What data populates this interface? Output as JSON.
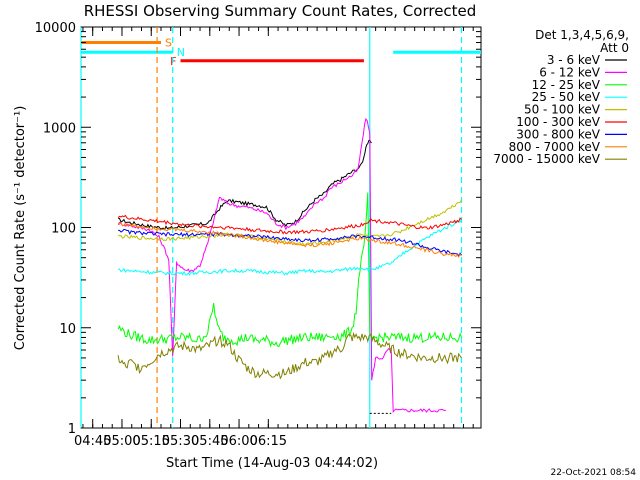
{
  "chart_data": {
    "type": "line",
    "title": "RHESSI Observing Summary Count Rates, Corrected",
    "xlabel": "Start Time (14-Aug-03 04:44:02)",
    "ylabel": "Corrected Count Rate (s⁻¹ detector⁻¹)",
    "yscale": "log",
    "ylim": [
      1,
      10000
    ],
    "xlim_minutes_after_start": [
      -5,
      200
    ],
    "x_ticks": [
      "04:45",
      "05:00",
      "05:15",
      "05:30",
      "05:45",
      "06:00",
      "06:15"
    ],
    "x_tick_minutes": [
      1,
      16,
      31,
      46,
      61,
      76,
      91
    ],
    "y_ticks": [
      "1",
      "10",
      "100",
      "1000",
      "10000"
    ],
    "y_tick_values": [
      1,
      10,
      100,
      1000,
      10000
    ],
    "legend_header": [
      "Det 1,3,4,5,6,9,",
      "Att 0"
    ],
    "legend_position": "right",
    "timestamp": "22-Oct-2021 08:54",
    "flags": [
      {
        "label": "S",
        "color": "#ff8000",
        "value": 7000,
        "x_start": -5,
        "x_end": 36
      },
      {
        "label": "N",
        "color": "#00ffff",
        "value": 5600,
        "x_start": -5,
        "x_end": 42
      },
      {
        "label": "N",
        "color": "#00ffff",
        "value": 5600,
        "x_start": 155,
        "x_end": 200
      },
      {
        "label": "F",
        "color": "#ff0000",
        "value": 4600,
        "x_start": 46,
        "x_end": 140
      }
    ],
    "flag_text": {
      "S": "S",
      "N": "N",
      "F": "F"
    },
    "vlines": [
      {
        "x": -5,
        "color": "#00ffff",
        "style": "solid"
      },
      {
        "x": 34,
        "color": "#ff8000",
        "style": "dashed"
      },
      {
        "x": 42,
        "color": "#00ffff",
        "style": "dashed"
      },
      {
        "x": 143,
        "color": "#00ffff",
        "style": "solid"
      },
      {
        "x": 190,
        "color": "#00ffff",
        "style": "dashed"
      }
    ],
    "series": [
      {
        "name": "3 - 6 keV",
        "color": "#000000",
        "points": [
          [
            14,
            120
          ],
          [
            20,
            112
          ],
          [
            30,
            103
          ],
          [
            40,
            98
          ],
          [
            50,
            104
          ],
          [
            60,
            110
          ],
          [
            66,
            155
          ],
          [
            70,
            185
          ],
          [
            75,
            180
          ],
          [
            80,
            172
          ],
          [
            85,
            168
          ],
          [
            90,
            160
          ],
          [
            95,
            120
          ],
          [
            100,
            105
          ],
          [
            105,
            115
          ],
          [
            110,
            150
          ],
          [
            115,
            190
          ],
          [
            120,
            220
          ],
          [
            122,
            250
          ],
          [
            125,
            280
          ],
          [
            128,
            300
          ],
          [
            132,
            340
          ],
          [
            135,
            370
          ],
          [
            138,
            400
          ],
          [
            140,
            500
          ],
          [
            141,
            650
          ],
          [
            142,
            700
          ],
          [
            143,
            720
          ],
          [
            144,
            700
          ]
        ]
      },
      {
        "name": "6 - 12 keV",
        "color": "#ff00ff",
        "points": [
          [
            14,
            110
          ],
          [
            20,
            105
          ],
          [
            30,
            95
          ],
          [
            35,
            80
          ],
          [
            38,
            60
          ],
          [
            40,
            48
          ],
          [
            42,
            5
          ],
          [
            44,
            45
          ],
          [
            48,
            38
          ],
          [
            52,
            37
          ],
          [
            56,
            42
          ],
          [
            60,
            70
          ],
          [
            64,
            140
          ],
          [
            66,
            200
          ],
          [
            70,
            175
          ],
          [
            75,
            165
          ],
          [
            80,
            160
          ],
          [
            85,
            150
          ],
          [
            90,
            140
          ],
          [
            95,
            110
          ],
          [
            100,
            100
          ],
          [
            105,
            110
          ],
          [
            110,
            130
          ],
          [
            115,
            175
          ],
          [
            120,
            200
          ],
          [
            122,
            240
          ],
          [
            125,
            260
          ],
          [
            128,
            280
          ],
          [
            131,
            310
          ],
          [
            134,
            330
          ],
          [
            137,
            380
          ],
          [
            139,
            700
          ],
          [
            141,
            1250
          ],
          [
            143,
            900
          ],
          [
            144,
            3
          ],
          [
            146,
            5
          ],
          [
            150,
            5
          ],
          [
            152,
            6
          ],
          [
            154,
            6
          ],
          [
            155,
            1.5
          ],
          [
            182,
            1.5
          ]
        ]
      },
      {
        "name": "12 - 25 keV",
        "color": "#00ff00",
        "points": [
          [
            14,
            10
          ],
          [
            20,
            8.5
          ],
          [
            25,
            8
          ],
          [
            30,
            7.5
          ],
          [
            40,
            7.8
          ],
          [
            45,
            8
          ],
          [
            50,
            8
          ],
          [
            55,
            7.5
          ],
          [
            60,
            9
          ],
          [
            63,
            17
          ],
          [
            65,
            10
          ],
          [
            68,
            8
          ],
          [
            75,
            7.5
          ],
          [
            80,
            8
          ],
          [
            85,
            7.5
          ],
          [
            90,
            7.5
          ],
          [
            95,
            7
          ],
          [
            100,
            7.5
          ],
          [
            110,
            8
          ],
          [
            120,
            8
          ],
          [
            125,
            8.5
          ],
          [
            128,
            8
          ],
          [
            132,
            9
          ],
          [
            134,
            10
          ],
          [
            136,
            15
          ],
          [
            138,
            40
          ],
          [
            140,
            60
          ],
          [
            142,
            200
          ],
          [
            143,
            8
          ],
          [
            150,
            8
          ],
          [
            160,
            8
          ],
          [
            170,
            8
          ],
          [
            180,
            8
          ],
          [
            190,
            8
          ]
        ]
      },
      {
        "name": "25 - 50 keV",
        "color": "#00ffff",
        "points": [
          [
            14,
            38
          ],
          [
            20,
            37
          ],
          [
            30,
            36
          ],
          [
            40,
            35
          ],
          [
            50,
            35
          ],
          [
            60,
            36
          ],
          [
            70,
            37
          ],
          [
            80,
            37
          ],
          [
            90,
            36
          ],
          [
            100,
            35
          ],
          [
            110,
            37
          ],
          [
            120,
            36
          ],
          [
            130,
            38
          ],
          [
            138,
            40
          ],
          [
            143,
            38
          ],
          [
            148,
            40
          ],
          [
            155,
            45
          ],
          [
            160,
            55
          ],
          [
            168,
            70
          ],
          [
            175,
            85
          ],
          [
            182,
            100
          ],
          [
            190,
            120
          ]
        ]
      },
      {
        "name": "50 - 100 keV",
        "color": "#c0c000",
        "points": [
          [
            14,
            82
          ],
          [
            20,
            80
          ],
          [
            30,
            78
          ],
          [
            40,
            77
          ],
          [
            50,
            79
          ],
          [
            60,
            82
          ],
          [
            70,
            85
          ],
          [
            80,
            82
          ],
          [
            90,
            78
          ],
          [
            100,
            72
          ],
          [
            110,
            68
          ],
          [
            120,
            72
          ],
          [
            130,
            78
          ],
          [
            138,
            85
          ],
          [
            143,
            80
          ],
          [
            150,
            82
          ],
          [
            158,
            90
          ],
          [
            165,
            105
          ],
          [
            172,
            120
          ],
          [
            180,
            140
          ],
          [
            186,
            165
          ],
          [
            190,
            190
          ]
        ]
      },
      {
        "name": "100 - 300 keV",
        "color": "#ff0000",
        "points": [
          [
            14,
            130
          ],
          [
            20,
            125
          ],
          [
            30,
            118
          ],
          [
            40,
            112
          ],
          [
            50,
            105
          ],
          [
            60,
            102
          ],
          [
            70,
            100
          ],
          [
            80,
            96
          ],
          [
            90,
            92
          ],
          [
            100,
            90
          ],
          [
            110,
            90
          ],
          [
            120,
            94
          ],
          [
            130,
            100
          ],
          [
            138,
            105
          ],
          [
            143,
            118
          ],
          [
            150,
            115
          ],
          [
            158,
            108
          ],
          [
            165,
            102
          ],
          [
            172,
            98
          ],
          [
            180,
            105
          ],
          [
            190,
            120
          ]
        ]
      },
      {
        "name": "300 - 800 keV",
        "color": "#0000ff",
        "points": [
          [
            14,
            95
          ],
          [
            20,
            90
          ],
          [
            30,
            87
          ],
          [
            40,
            85
          ],
          [
            50,
            85
          ],
          [
            60,
            86
          ],
          [
            70,
            85
          ],
          [
            80,
            83
          ],
          [
            90,
            80
          ],
          [
            100,
            77
          ],
          [
            110,
            74
          ],
          [
            120,
            76
          ],
          [
            130,
            80
          ],
          [
            138,
            82
          ],
          [
            143,
            80
          ],
          [
            150,
            78
          ],
          [
            158,
            75
          ],
          [
            165,
            70
          ],
          [
            172,
            63
          ],
          [
            180,
            58
          ],
          [
            190,
            53
          ]
        ]
      },
      {
        "name": "800 - 7000 keV",
        "color": "#ff8000",
        "points": [
          [
            14,
            110
          ],
          [
            20,
            105
          ],
          [
            30,
            100
          ],
          [
            40,
            96
          ],
          [
            50,
            93
          ],
          [
            60,
            90
          ],
          [
            70,
            86
          ],
          [
            80,
            80
          ],
          [
            90,
            74
          ],
          [
            100,
            70
          ],
          [
            110,
            66
          ],
          [
            120,
            68
          ],
          [
            130,
            74
          ],
          [
            138,
            78
          ],
          [
            143,
            75
          ],
          [
            150,
            72
          ],
          [
            158,
            68
          ],
          [
            165,
            64
          ],
          [
            172,
            59
          ],
          [
            180,
            55
          ],
          [
            190,
            52
          ]
        ]
      },
      {
        "name": "7000 - 15000 keV",
        "color": "#808000",
        "points": [
          [
            14,
            5
          ],
          [
            18,
            4
          ],
          [
            20,
            4.5
          ],
          [
            25,
            4
          ],
          [
            30,
            4.5
          ],
          [
            35,
            5.5
          ],
          [
            40,
            6
          ],
          [
            45,
            6.5
          ],
          [
            50,
            6.5
          ],
          [
            55,
            6
          ],
          [
            60,
            6.5
          ],
          [
            65,
            7.5
          ],
          [
            70,
            7
          ],
          [
            75,
            5
          ],
          [
            80,
            4
          ],
          [
            85,
            3.5
          ],
          [
            90,
            3.5
          ],
          [
            95,
            3.5
          ],
          [
            100,
            3.5
          ],
          [
            105,
            4
          ],
          [
            110,
            4.5
          ],
          [
            115,
            4.5
          ],
          [
            120,
            5
          ],
          [
            125,
            6
          ],
          [
            128,
            6
          ],
          [
            132,
            8
          ],
          [
            136,
            8
          ],
          [
            142,
            8
          ],
          [
            148,
            7
          ],
          [
            155,
            6
          ],
          [
            160,
            5.5
          ],
          [
            170,
            5
          ],
          [
            180,
            5
          ],
          [
            190,
            5
          ]
        ]
      }
    ],
    "minor_black_segment": {
      "x": [
        143,
        154
      ],
      "y": 1.4
    }
  }
}
